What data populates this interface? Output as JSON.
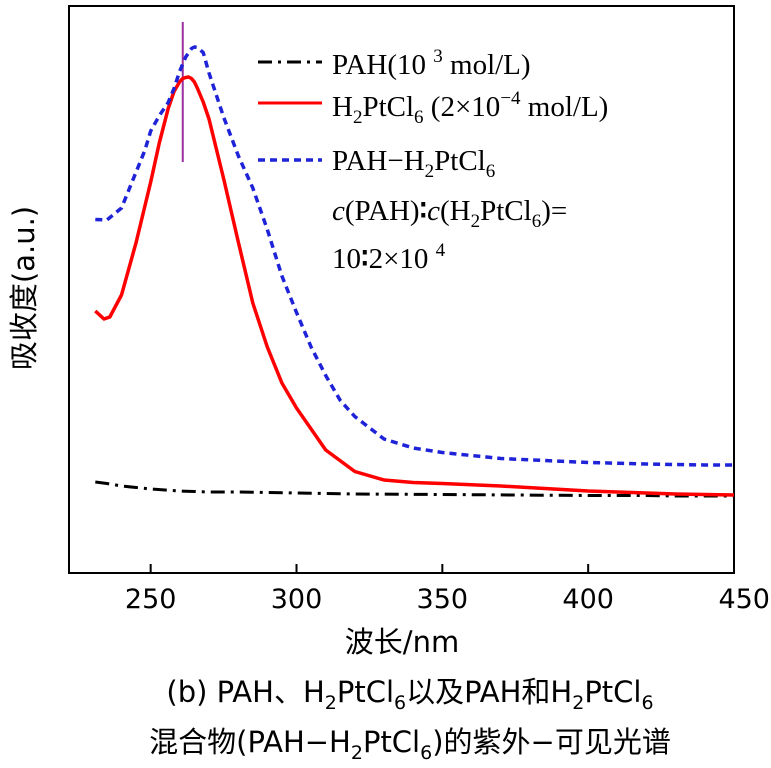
{
  "chart_data": {
    "type": "line",
    "xlabel": "波长/nm",
    "ylabel": "吸收度(a.u.)",
    "xlim": [
      222,
      450
    ],
    "ylim": [
      0,
      1
    ],
    "x_ticks": [
      "250",
      "300",
      "350",
      "400",
      "450"
    ],
    "marker_x": 261,
    "series": [
      {
        "name": "PAH(10 3 mol/L)",
        "style": "dashdot",
        "color": "#000000",
        "x": [
          231,
          235,
          240,
          245,
          250,
          255,
          260,
          265,
          270,
          280,
          290,
          300,
          320,
          350,
          400,
          420,
          430,
          440,
          450
        ],
        "y": [
          0.116,
          0.113,
          0.108,
          0.105,
          0.102,
          0.1,
          0.098,
          0.097,
          0.096,
          0.096,
          0.095,
          0.094,
          0.092,
          0.091,
          0.089,
          0.089,
          0.088,
          0.088,
          0.088
        ]
      },
      {
        "name": "H2PtCl6 (2×10-4 mol/L)",
        "style": "solid",
        "color": "#ff0000",
        "x": [
          231,
          234,
          236,
          240,
          245,
          250,
          253,
          256,
          258,
          260,
          261,
          262,
          263,
          264,
          265,
          266,
          268,
          270,
          275,
          280,
          285,
          290,
          295,
          300,
          310,
          320,
          330,
          340,
          350,
          370,
          400,
          420,
          430,
          440,
          450
        ],
        "y": [
          0.458,
          0.442,
          0.446,
          0.49,
          0.595,
          0.716,
          0.795,
          0.863,
          0.897,
          0.917,
          0.923,
          0.925,
          0.926,
          0.923,
          0.916,
          0.904,
          0.876,
          0.842,
          0.723,
          0.597,
          0.474,
          0.386,
          0.314,
          0.264,
          0.18,
          0.137,
          0.12,
          0.115,
          0.113,
          0.108,
          0.098,
          0.094,
          0.092,
          0.091,
          0.09
        ]
      },
      {
        "name": "PAH–H2PtCl6",
        "style": "dashed",
        "color": "#1f23d8",
        "x": [
          231,
          235,
          240,
          245,
          248,
          250,
          253,
          256,
          258,
          260,
          262,
          264,
          265,
          266,
          268,
          270,
          275,
          280,
          285,
          290,
          295,
          300,
          305,
          310,
          315,
          320,
          330,
          340,
          350,
          370,
          400,
          420,
          430,
          440,
          450
        ],
        "y": [
          0.641,
          0.64,
          0.664,
          0.736,
          0.779,
          0.818,
          0.849,
          0.875,
          0.903,
          0.938,
          0.966,
          0.983,
          0.986,
          0.985,
          0.975,
          0.934,
          0.846,
          0.769,
          0.704,
          0.621,
          0.528,
          0.455,
          0.386,
          0.329,
          0.279,
          0.247,
          0.202,
          0.184,
          0.175,
          0.163,
          0.155,
          0.152,
          0.151,
          0.15,
          0.15
        ]
      }
    ],
    "legend": {
      "placement": "top-right",
      "pah": {
        "a": "PAH(10 ",
        "sup": "3",
        "b": " mol/L)"
      },
      "h2ptcl6": {
        "a": "H",
        "sub1": "2",
        "b": "PtCl",
        "sub2": "6",
        "c": " (2×10",
        "sup": "−4",
        "d": " mol/L)"
      },
      "mix": {
        "line1": {
          "a": "PAH−H",
          "sub1": "2",
          "b": "PtCl",
          "sub2": "6"
        },
        "line2": {
          "c": "c",
          "a": "(PAH)",
          "colon": "∶",
          "c2": "c",
          "b": "(H",
          "sub1": "2",
          "d": "PtCl",
          "sub2": "6",
          "e": ")="
        },
        "line3": {
          "a": "10",
          "colon": "∶",
          "b": "2×10 ",
          "sup": "4"
        }
      }
    }
  },
  "caption": {
    "line1": {
      "a": "(b) PAH、H",
      "sub1": "2",
      "b": "PtCl",
      "sub2": "6",
      "c": "以及PAH和H",
      "sub3": "2",
      "d": "PtCl",
      "sub4": "6"
    },
    "line2": {
      "a": "混合物(PAH−H",
      "sub1": "2",
      "b": "PtCl",
      "sub2": "6",
      "c": ")的紫外−可见光谱"
    }
  }
}
